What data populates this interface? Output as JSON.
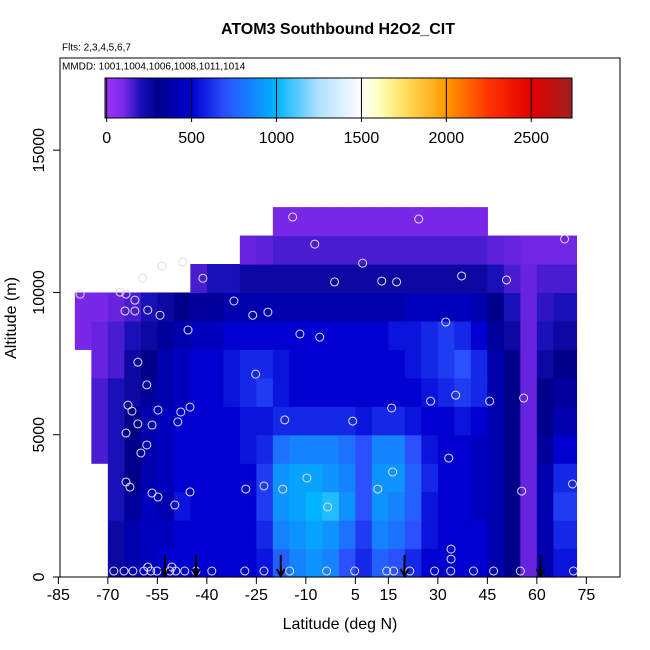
{
  "chart_data": {
    "type": "heatmap",
    "title": "ATOM3 Southbound H2O2_CIT",
    "subtitle": "Flts: 2,3,4,5,6,7",
    "annotation": "MMDD: 1001,1004,1006,1008,1011,1014",
    "x_label": "Latitude (deg N)",
    "y_label": "Altitude (m)",
    "xlim": [
      -84.5,
      85.2
    ],
    "ylim": [
      0,
      18240
    ],
    "xticks": [
      -85,
      -70,
      -55,
      -40,
      -25,
      -10,
      5,
      15,
      30,
      45,
      60,
      75
    ],
    "yticks": [
      0,
      5000,
      10000,
      15000
    ],
    "clim": [
      -10,
      2740
    ],
    "cticks": [
      0,
      500,
      1000,
      1500,
      2000,
      2500
    ],
    "colorscale": [
      [
        0,
        "#9a34f8"
      ],
      [
        100,
        "#7a28e8"
      ],
      [
        200,
        "#1a10b8"
      ],
      [
        300,
        "#00008b"
      ],
      [
        500,
        "#0000d0"
      ],
      [
        700,
        "#2a50ff"
      ],
      [
        1000,
        "#00b4ff"
      ],
      [
        1250,
        "#b0e0ff"
      ],
      [
        1500,
        "#ffffff"
      ],
      [
        1600,
        "#ffffc0"
      ],
      [
        1750,
        "#ffe060"
      ],
      [
        2000,
        "#ff9900"
      ],
      [
        2250,
        "#ff3300"
      ],
      [
        2500,
        "#e00000"
      ],
      [
        2740,
        "#a02020"
      ]
    ],
    "xedges": [
      -80,
      -75,
      -70,
      -65,
      -60,
      -55,
      -50,
      -45,
      -40,
      -35,
      -30,
      -25,
      -20,
      -15,
      -10,
      -5,
      0,
      5,
      10,
      15,
      20,
      25,
      30,
      35,
      40,
      45,
      50,
      55,
      60,
      65,
      72
    ],
    "yedges": [
      0,
      1000,
      2000,
      3000,
      4000,
      5000,
      6000,
      7000,
      8000,
      9000,
      10000,
      11000,
      12000,
      13000
    ],
    "z": [
      [
        null,
        null,
        250,
        400,
        450,
        500,
        500,
        500,
        500,
        500,
        500,
        550,
        750,
        850,
        900,
        850,
        700,
        600,
        750,
        700,
        600,
        500,
        500,
        500,
        500,
        400,
        300,
        120,
        400,
        550
      ],
      [
        null,
        null,
        250,
        400,
        450,
        450,
        500,
        500,
        500,
        500,
        500,
        600,
        850,
        900,
        950,
        900,
        800,
        650,
        850,
        800,
        700,
        550,
        500,
        500,
        500,
        400,
        300,
        120,
        400,
        600
      ],
      [
        null,
        null,
        200,
        350,
        450,
        400,
        550,
        500,
        500,
        500,
        500,
        650,
        900,
        950,
        1000,
        1050,
        900,
        700,
        900,
        850,
        750,
        550,
        500,
        500,
        450,
        400,
        300,
        120,
        400,
        650
      ],
      [
        null,
        null,
        200,
        300,
        400,
        450,
        500,
        500,
        500,
        500,
        500,
        650,
        900,
        950,
        950,
        900,
        850,
        700,
        900,
        900,
        750,
        600,
        500,
        500,
        450,
        400,
        300,
        120,
        400,
        600
      ],
      [
        null,
        150,
        200,
        300,
        400,
        450,
        500,
        500,
        500,
        500,
        550,
        600,
        800,
        850,
        850,
        850,
        800,
        700,
        850,
        850,
        700,
        550,
        500,
        500,
        450,
        400,
        300,
        120,
        350,
        500
      ],
      [
        null,
        150,
        200,
        300,
        400,
        450,
        500,
        500,
        500,
        500,
        550,
        550,
        600,
        600,
        600,
        600,
        600,
        550,
        600,
        600,
        550,
        500,
        500,
        550,
        500,
        400,
        300,
        120,
        300,
        400
      ],
      [
        null,
        150,
        200,
        250,
        350,
        400,
        450,
        500,
        500,
        550,
        600,
        650,
        550,
        500,
        500,
        500,
        500,
        500,
        500,
        500,
        500,
        550,
        600,
        650,
        600,
        400,
        300,
        120,
        300,
        350
      ],
      [
        null,
        120,
        150,
        250,
        300,
        400,
        450,
        500,
        500,
        550,
        600,
        600,
        550,
        500,
        500,
        500,
        500,
        500,
        500,
        500,
        550,
        600,
        650,
        700,
        600,
        400,
        300,
        120,
        250,
        300
      ],
      [
        100,
        120,
        150,
        200,
        250,
        350,
        400,
        450,
        450,
        500,
        500,
        500,
        500,
        500,
        500,
        500,
        500,
        500,
        500,
        550,
        550,
        600,
        650,
        600,
        500,
        350,
        250,
        120,
        200,
        250
      ],
      [
        100,
        100,
        120,
        150,
        200,
        250,
        300,
        350,
        350,
        400,
        400,
        400,
        400,
        400,
        400,
        400,
        400,
        400,
        400,
        400,
        450,
        450,
        450,
        450,
        400,
        300,
        200,
        120,
        180,
        200
      ],
      [
        null,
        null,
        null,
        null,
        null,
        null,
        null,
        150,
        200,
        200,
        250,
        250,
        250,
        250,
        250,
        250,
        250,
        250,
        250,
        250,
        250,
        250,
        250,
        250,
        250,
        200,
        150,
        120,
        150,
        150
      ],
      [
        null,
        null,
        null,
        null,
        null,
        null,
        null,
        null,
        null,
        null,
        120,
        130,
        150,
        150,
        150,
        150,
        150,
        150,
        150,
        150,
        150,
        150,
        150,
        150,
        150,
        130,
        120,
        110,
        110,
        110
      ],
      [
        null,
        null,
        null,
        null,
        null,
        null,
        null,
        null,
        null,
        null,
        null,
        null,
        100,
        100,
        100,
        100,
        100,
        100,
        100,
        100,
        100,
        100,
        100,
        100,
        100,
        null,
        null,
        null,
        null,
        null
      ]
    ],
    "points": {
      "x": [
        -78.4,
        -66.3,
        -64.5,
        -61.8,
        -64.8,
        -61.8,
        -57.9,
        -54.2,
        -59.4,
        -53.6,
        -47.3,
        -41.2,
        -45.7,
        -31.8,
        -26.1,
        -21.5,
        -14,
        -7.3,
        -1.3,
        7.2,
        13,
        17.5,
        24.2,
        37.2,
        50.8,
        68.4,
        32.4,
        -11.8,
        -5.8,
        -60.9,
        -25.2,
        -58.2,
        -63.9,
        -62.7,
        -54.8,
        -47.9,
        -45.1,
        -48.8,
        -56.6,
        -60.9,
        -64.5,
        -16.4,
        4.2,
        16,
        27.8,
        35.4,
        45.7,
        56,
        33.3,
        -58.2,
        -60,
        16.3,
        -9.7,
        -22.7,
        -28.2,
        -64.5,
        -63.3,
        -56.6,
        -54.8,
        -45.1,
        -17,
        11.8,
        55.4,
        70.8,
        -49.7,
        -3.4,
        34,
        34,
        -68.2,
        -65.1,
        -62.4,
        -59.1,
        -57,
        -55.1,
        -51.2,
        -49.4,
        -46.7,
        -43.3,
        -38.5,
        -28.5,
        -22.7,
        -14.9,
        -3.7,
        4.8,
        14.5,
        16.6,
        21.5,
        29,
        33.9,
        40.8,
        46.9,
        55,
        71.1,
        -57.9,
        -50.6
      ],
      "y": [
        9940,
        10010,
        9940,
        9730,
        9350,
        9350,
        9380,
        9200,
        10500,
        10930,
        11070,
        10500,
        8680,
        9700,
        9200,
        9310,
        12650,
        11700,
        10370,
        11030,
        10400,
        10370,
        12580,
        10580,
        10440,
        11880,
        8960,
        8540,
        8430,
        7550,
        7130,
        6750,
        6040,
        5830,
        5870,
        5800,
        5970,
        5450,
        5340,
        5380,
        5060,
        5520,
        5480,
        5940,
        6180,
        6390,
        6180,
        6290,
        4180,
        4640,
        4360,
        3690,
        3480,
        3200,
        3090,
        3340,
        3160,
        2950,
        2810,
        2990,
        3090,
        3090,
        3020,
        3270,
        2530,
        2460,
        980,
        630,
        210,
        210,
        210,
        210,
        210,
        210,
        210,
        210,
        210,
        210,
        210,
        210,
        210,
        210,
        210,
        210,
        210,
        210,
        210,
        210,
        210,
        210,
        210,
        210,
        210,
        350,
        350
      ]
    },
    "arrows": [
      -52.7,
      -43.3,
      -17.6,
      19.9,
      61.1
    ]
  }
}
